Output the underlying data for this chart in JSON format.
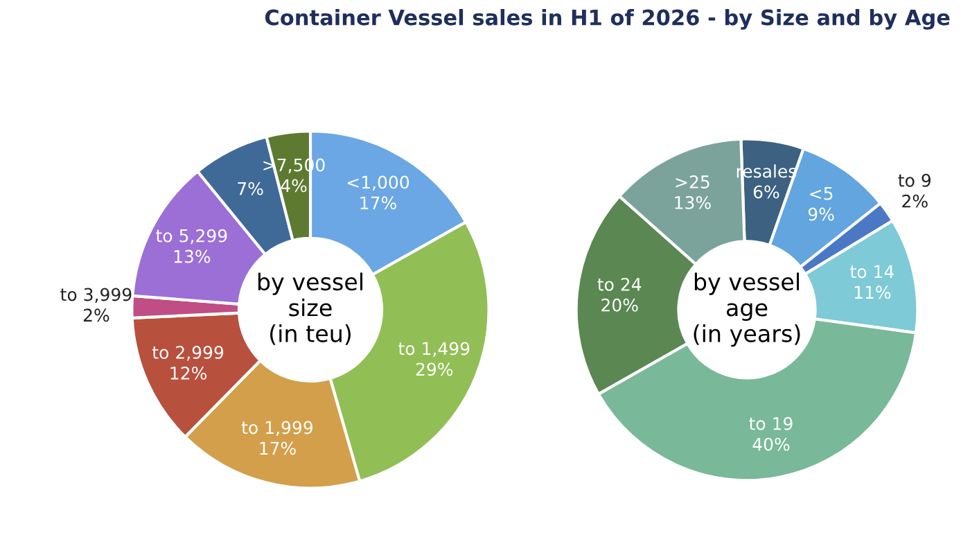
{
  "chart_data": [
    {
      "type": "donut",
      "title": "Container Vessel sales in H1 of 2026 - by Size and by Age",
      "categories": [
        "<1,000",
        "to 1,499",
        "to 1,999",
        "to 2,999",
        "to 3,999",
        "to 5,299",
        null,
        ">7,500"
      ],
      "values": [
        17,
        29,
        17,
        12,
        2,
        13,
        7,
        4
      ],
      "value_labels": [
        "17%",
        "29%",
        "17%",
        "12%",
        "2%",
        "13%",
        "7%",
        "4%"
      ],
      "colors": [
        "#6aa7e4",
        "#92be56",
        "#d39f4b",
        "#b8503e",
        "#c04d83",
        "#9b6fd6",
        "#3f6a98",
        "#5e7a30"
      ],
      "annotations": [
        "by vessel\nsize\n(in teu)"
      ]
    },
    {
      "type": "donut",
      "categories": [
        "resales",
        "<5",
        "to 9",
        "to 14",
        "to 19",
        "to 24",
        ">25"
      ],
      "values": [
        6,
        9,
        2,
        11,
        40,
        20,
        13
      ],
      "value_labels": [
        "6%",
        "9%",
        "2%",
        "11%",
        "40%",
        "20%",
        "13%"
      ],
      "colors": [
        "#3d6180",
        "#62a5df",
        "#4a78c4",
        "#7ecad6",
        "#79b898",
        "#5a8752",
        "#7ba39b"
      ],
      "annotations": [
        "by vessel\nage\n(in years)"
      ]
    }
  ]
}
